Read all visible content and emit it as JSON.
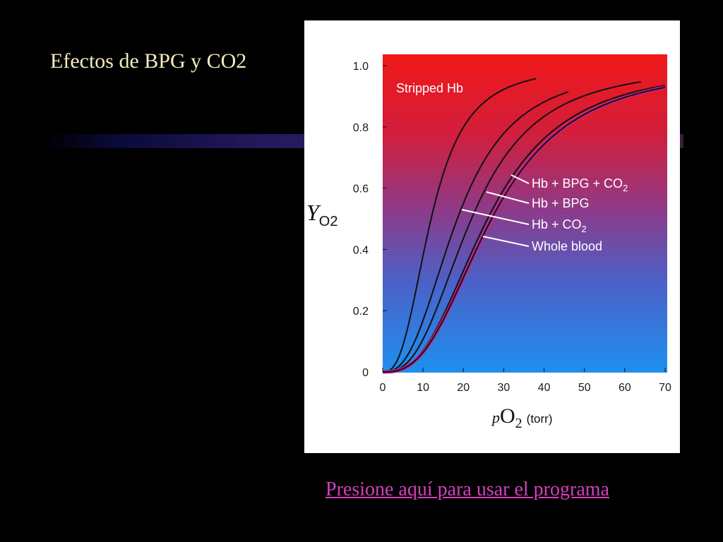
{
  "slide": {
    "title": "Efectos de BPG y CO2",
    "link_text": "Presione aquí para usar el programa"
  },
  "colors": {
    "title_text": "#f3ecbf",
    "link_text": "#d63fbd",
    "plot_top": "#f01818",
    "plot_bottom": "#1e90f0",
    "curve": "#111111",
    "whole_blood_highlight": "#c8238c"
  },
  "chart_data": {
    "type": "line",
    "xlim": [
      0,
      70
    ],
    "ylim": [
      0,
      1.0
    ],
    "xticks": [
      "0",
      "10",
      "20",
      "30",
      "40",
      "50",
      "60",
      "70"
    ],
    "yticks": [
      "0",
      "0.2",
      "0.4",
      "0.6",
      "0.8",
      "1.0"
    ],
    "ylabel_main": "Y",
    "ylabel_sub": "O2",
    "xlabel_main_prefix": "p",
    "xlabel_main": "O",
    "xlabel_sub": "2",
    "xlabel_unit": "(torr)",
    "series": [
      {
        "name": "Stripped Hb",
        "p50": 12,
        "n": 2.7,
        "xmax": 38
      },
      {
        "name": "Hb + CO2",
        "p50": 18.5,
        "n": 2.6,
        "xmax": 46
      },
      {
        "name": "Hb + BPG",
        "p50": 22,
        "n": 2.7,
        "xmax": 64
      },
      {
        "name": "Hb + BPG + CO2",
        "p50": 26,
        "n": 2.7,
        "xmax": 70
      },
      {
        "name": "Whole blood",
        "p50": 27,
        "n": 2.7,
        "xmax": 70
      }
    ],
    "labels": [
      {
        "text_main": "Hb + BPG + CO",
        "text_sub": "2"
      },
      {
        "text_main": "Hb + BPG",
        "text_sub": ""
      },
      {
        "text_main": "Hb + CO",
        "text_sub": "2"
      },
      {
        "text_main": "Whole blood",
        "text_sub": ""
      }
    ]
  }
}
